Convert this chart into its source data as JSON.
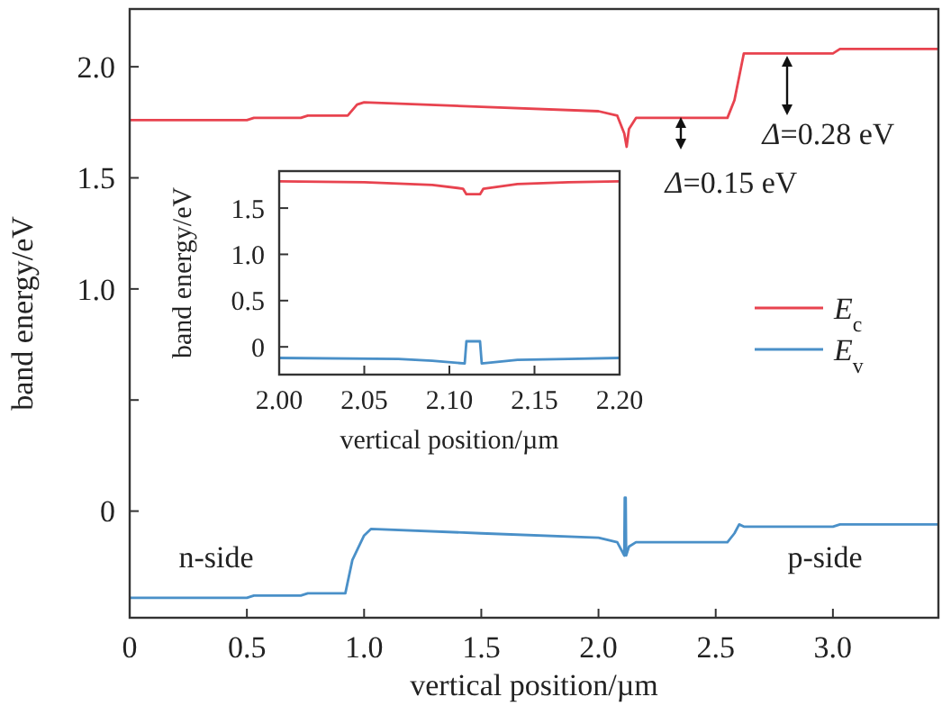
{
  "chart_data": [
    {
      "type": "line",
      "xlabel": "vertical position/µm",
      "ylabel": "band energy/eV",
      "xlim": [
        0,
        3.45
      ],
      "ylim": [
        -0.48,
        2.26
      ],
      "xticks": [
        0,
        0.5,
        {
          "value": 1,
          "label": "1.0"
        },
        1.5,
        {
          "value": 2,
          "label": "2.0"
        },
        2.5,
        {
          "value": 3,
          "label": "3.0"
        }
      ],
      "yticks": [
        0,
        {
          "value": 0.5,
          "label": null
        },
        {
          "value": 1,
          "label": "1.0"
        },
        1.5,
        {
          "value": 2,
          "label": "2.0"
        }
      ],
      "grid": false,
      "legend": "right",
      "line_style": "solid",
      "marker": "none",
      "series": [
        {
          "name": "E$_{c}$",
          "color": "#e8434f",
          "x": [
            0,
            0.5,
            0.53,
            0.73,
            0.76,
            0.93,
            0.97,
            1.0,
            1.5,
            2.0,
            2.08,
            2.11,
            2.12,
            2.13,
            2.16,
            2.3,
            2.55,
            2.58,
            2.62,
            3.0,
            3.03,
            3.45
          ],
          "values": [
            1.76,
            1.76,
            1.77,
            1.77,
            1.78,
            1.78,
            1.83,
            1.84,
            1.82,
            1.8,
            1.78,
            1.7,
            1.64,
            1.72,
            1.77,
            1.77,
            1.77,
            1.85,
            2.06,
            2.06,
            2.08,
            2.08
          ]
        },
        {
          "name": "E$_{v}$",
          "color": "#4a90c8",
          "x": [
            0,
            0.5,
            0.53,
            0.73,
            0.76,
            0.92,
            0.95,
            1.0,
            1.03,
            1.5,
            2.0,
            2.08,
            2.11,
            2.112,
            2.116,
            2.118,
            2.13,
            2.16,
            2.3,
            2.55,
            2.58,
            2.6,
            2.62,
            3.0,
            3.03,
            3.45
          ],
          "values": [
            -0.39,
            -0.39,
            -0.38,
            -0.38,
            -0.37,
            -0.37,
            -0.22,
            -0.11,
            -0.08,
            -0.1,
            -0.12,
            -0.14,
            -0.2,
            0.06,
            0.06,
            -0.2,
            -0.16,
            -0.14,
            -0.14,
            -0.14,
            -0.1,
            -0.06,
            -0.07,
            -0.07,
            -0.06,
            -0.06
          ]
        }
      ],
      "annotations": [
        "Δ=0.28 eV",
        "Δ=0.15 eV",
        "n-side",
        "p-side"
      ]
    },
    {
      "type": "line",
      "xlabel": "vertical position/µm",
      "ylabel": "band energy/eV",
      "xlim": [
        2.0,
        2.2
      ],
      "ylim": [
        -0.3,
        1.9
      ],
      "xticks": [
        {
          "value": 2,
          "label": "2.00"
        },
        2.05,
        {
          "value": 2.1,
          "label": "2.10"
        },
        2.15,
        {
          "value": 2.2,
          "label": "2.20"
        }
      ],
      "yticks": [
        0,
        0.5,
        {
          "value": 1,
          "label": "1.0"
        },
        1.5
      ],
      "grid": false,
      "legend": false,
      "line_style": "solid",
      "marker": "none",
      "series": [
        {
          "color": "#e8434f",
          "x": [
            2.0,
            2.05,
            2.09,
            2.108,
            2.11,
            2.118,
            2.12,
            2.14,
            2.17,
            2.2
          ],
          "values": [
            1.79,
            1.78,
            1.75,
            1.71,
            1.65,
            1.65,
            1.71,
            1.76,
            1.78,
            1.79
          ]
        },
        {
          "color": "#4a90c8",
          "x": [
            2.0,
            2.07,
            2.09,
            2.109,
            2.11,
            2.118,
            2.119,
            2.14,
            2.17,
            2.2
          ],
          "values": [
            -0.12,
            -0.13,
            -0.15,
            -0.18,
            0.06,
            0.06,
            -0.18,
            -0.14,
            -0.13,
            -0.12
          ]
        }
      ]
    }
  ]
}
